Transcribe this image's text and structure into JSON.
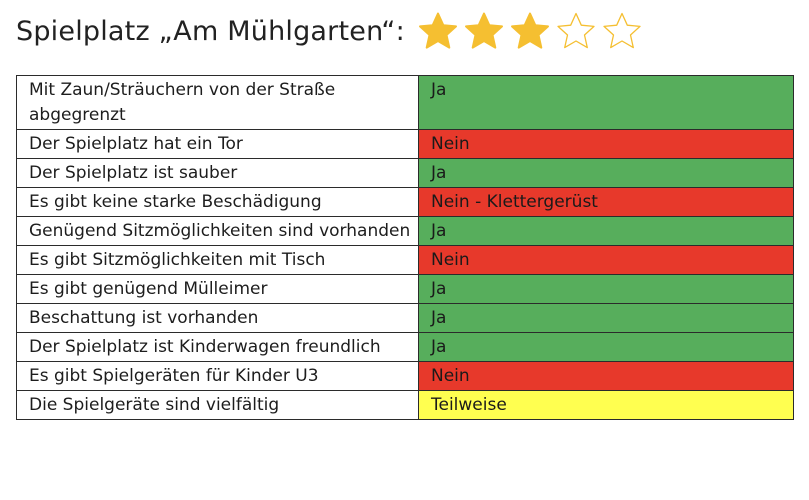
{
  "title": "Spielplatz „Am Mühlgarten“:",
  "rating": {
    "value": 3,
    "max": 5,
    "filled_color": "#F5BF31",
    "empty_stroke": "#F5BF31"
  },
  "status_colors": {
    "Ja": "#57AE5C",
    "Nein": "#E7392B",
    "Teilweise": "#FFFF50"
  },
  "rows": [
    {
      "label": "Mit Zaun/Sträuchern von der Straße abgegrenzt",
      "value": "Ja",
      "status": "Ja"
    },
    {
      "label": "Der Spielplatz hat ein Tor",
      "value": "Nein",
      "status": "Nein"
    },
    {
      "label": "Der Spielplatz ist sauber",
      "value": "Ja",
      "status": "Ja"
    },
    {
      "label": "Es gibt keine starke Beschädigung",
      "value": "Nein - Klettergerüst",
      "status": "Nein"
    },
    {
      "label": "Genügend Sitzmöglichkeiten sind vorhanden",
      "value": "Ja",
      "status": "Ja"
    },
    {
      "label": "Es gibt Sitzmöglichkeiten mit Tisch",
      "value": "Nein",
      "status": "Nein"
    },
    {
      "label": "Es gibt genügend Mülleimer",
      "value": "Ja",
      "status": "Ja"
    },
    {
      "label": "Beschattung ist vorhanden",
      "value": "Ja",
      "status": "Ja"
    },
    {
      "label": "Der Spielplatz ist Kinderwagen freundlich",
      "value": "Ja",
      "status": "Ja"
    },
    {
      "label": "Es gibt Spielgeräten für Kinder U3",
      "value": "Nein",
      "status": "Nein"
    },
    {
      "label": "Die Spielgeräte sind vielfältig",
      "value": "Teilweise",
      "status": "Teilweise"
    }
  ]
}
